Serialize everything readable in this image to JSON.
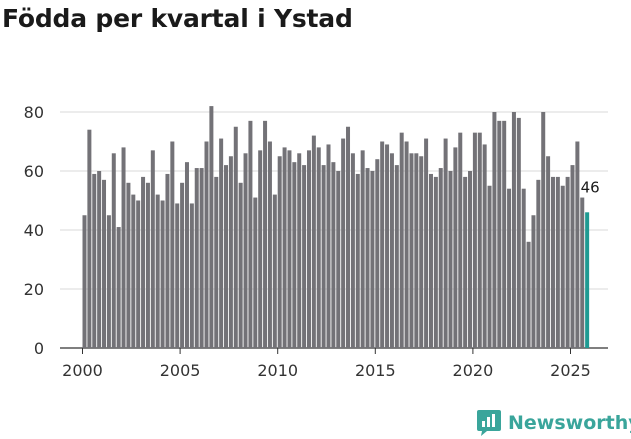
{
  "title": "Födda per kvartal i Ystad",
  "brand": {
    "name": "Newsworthy",
    "icon": "newsworthy-logo-icon",
    "color": "#3aa59b"
  },
  "colors": {
    "bar": "#737277",
    "highlight": "#1f9a92",
    "grid": "#d9d9d9",
    "axis": "#333333"
  },
  "chart_data": {
    "type": "bar",
    "title": "Födda per kvartal i Ystad",
    "xlabel": "",
    "ylabel": "",
    "ylim": [
      0,
      80
    ],
    "yticks": [
      0,
      20,
      40,
      60,
      80
    ],
    "xticks": [
      "2000",
      "2005",
      "2010",
      "2015",
      "2020",
      "2025"
    ],
    "x_start_year": 2000,
    "periods_per_year": 4,
    "grid": true,
    "highlight_last": true,
    "last_label": "46",
    "values": [
      45,
      74,
      59,
      60,
      57,
      45,
      66,
      41,
      68,
      56,
      52,
      50,
      58,
      56,
      67,
      52,
      50,
      59,
      70,
      49,
      56,
      63,
      49,
      61,
      61,
      70,
      82,
      58,
      71,
      62,
      65,
      75,
      56,
      66,
      77,
      51,
      67,
      77,
      70,
      52,
      65,
      68,
      67,
      63,
      66,
      62,
      67,
      72,
      68,
      62,
      69,
      63,
      60,
      71,
      75,
      66,
      59,
      67,
      61,
      60,
      64,
      70,
      69,
      66,
      62,
      73,
      70,
      66,
      66,
      65,
      71,
      59,
      58,
      61,
      71,
      60,
      68,
      73,
      58,
      60,
      73,
      73,
      69,
      55,
      80,
      77,
      77,
      54,
      80,
      78,
      54,
      36,
      45,
      57,
      80,
      65,
      58,
      58,
      55,
      58,
      62,
      70,
      51,
      46
    ]
  }
}
